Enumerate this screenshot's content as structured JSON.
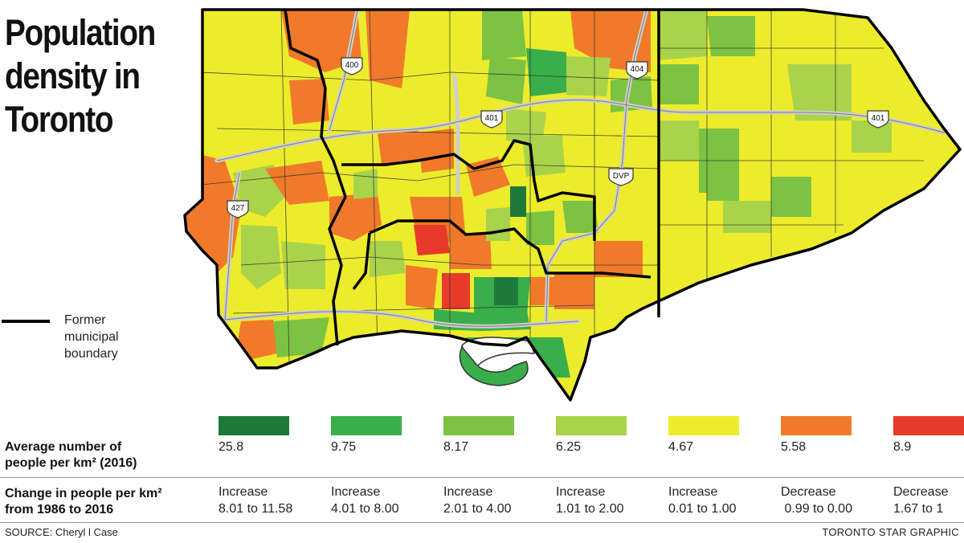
{
  "title_lines": [
    "Population",
    "density in",
    "Toronto"
  ],
  "boundary_legend": {
    "label_lines": [
      "Former",
      "municipal",
      "boundary"
    ]
  },
  "highways": [
    {
      "icon": "highway-shield-icon",
      "label": "400"
    },
    {
      "icon": "highway-shield-icon",
      "label": "404"
    },
    {
      "icon": "highway-shield-icon",
      "label": "401"
    },
    {
      "icon": "highway-shield-icon",
      "label": "401"
    },
    {
      "icon": "highway-shield-icon",
      "label": "427"
    },
    {
      "icon": "highway-shield-icon",
      "label": "DVP"
    }
  ],
  "legend": {
    "density_label_lines": [
      "Average number of",
      "people per km² (2016)"
    ],
    "change_label_lines": [
      "Change in people per km²",
      "from 1986 to 2016"
    ],
    "items": [
      {
        "color": "#1e7a3a",
        "density": "25.8",
        "direction": "Increase",
        "range": "8.01 to 11.58"
      },
      {
        "color": "#3aae4a",
        "density": "9.75",
        "direction": "Increase",
        "range": "4.01 to 8.00"
      },
      {
        "color": "#7cc243",
        "density": "8.17",
        "direction": "Increase",
        "range": "2.01 to 4.00"
      },
      {
        "color": "#a9d34a",
        "density": "6.25",
        "direction": "Increase",
        "range": "1.01 to 2.00"
      },
      {
        "color": "#ecec2c",
        "density": "4.67",
        "direction": "Increase",
        "range": "0.01 to 1.00"
      },
      {
        "color": "#f07a2a",
        "density": "5.58",
        "direction": "Decrease",
        "range": " 0.99 to 0.00"
      },
      {
        "color": "#e83a2a",
        "density": "8.9",
        "direction": "Decrease",
        "range": "1.67 to 1"
      }
    ]
  },
  "source": "SOURCE: Cheryl l Case",
  "credit": "TORONTO STAR GRAPHIC"
}
